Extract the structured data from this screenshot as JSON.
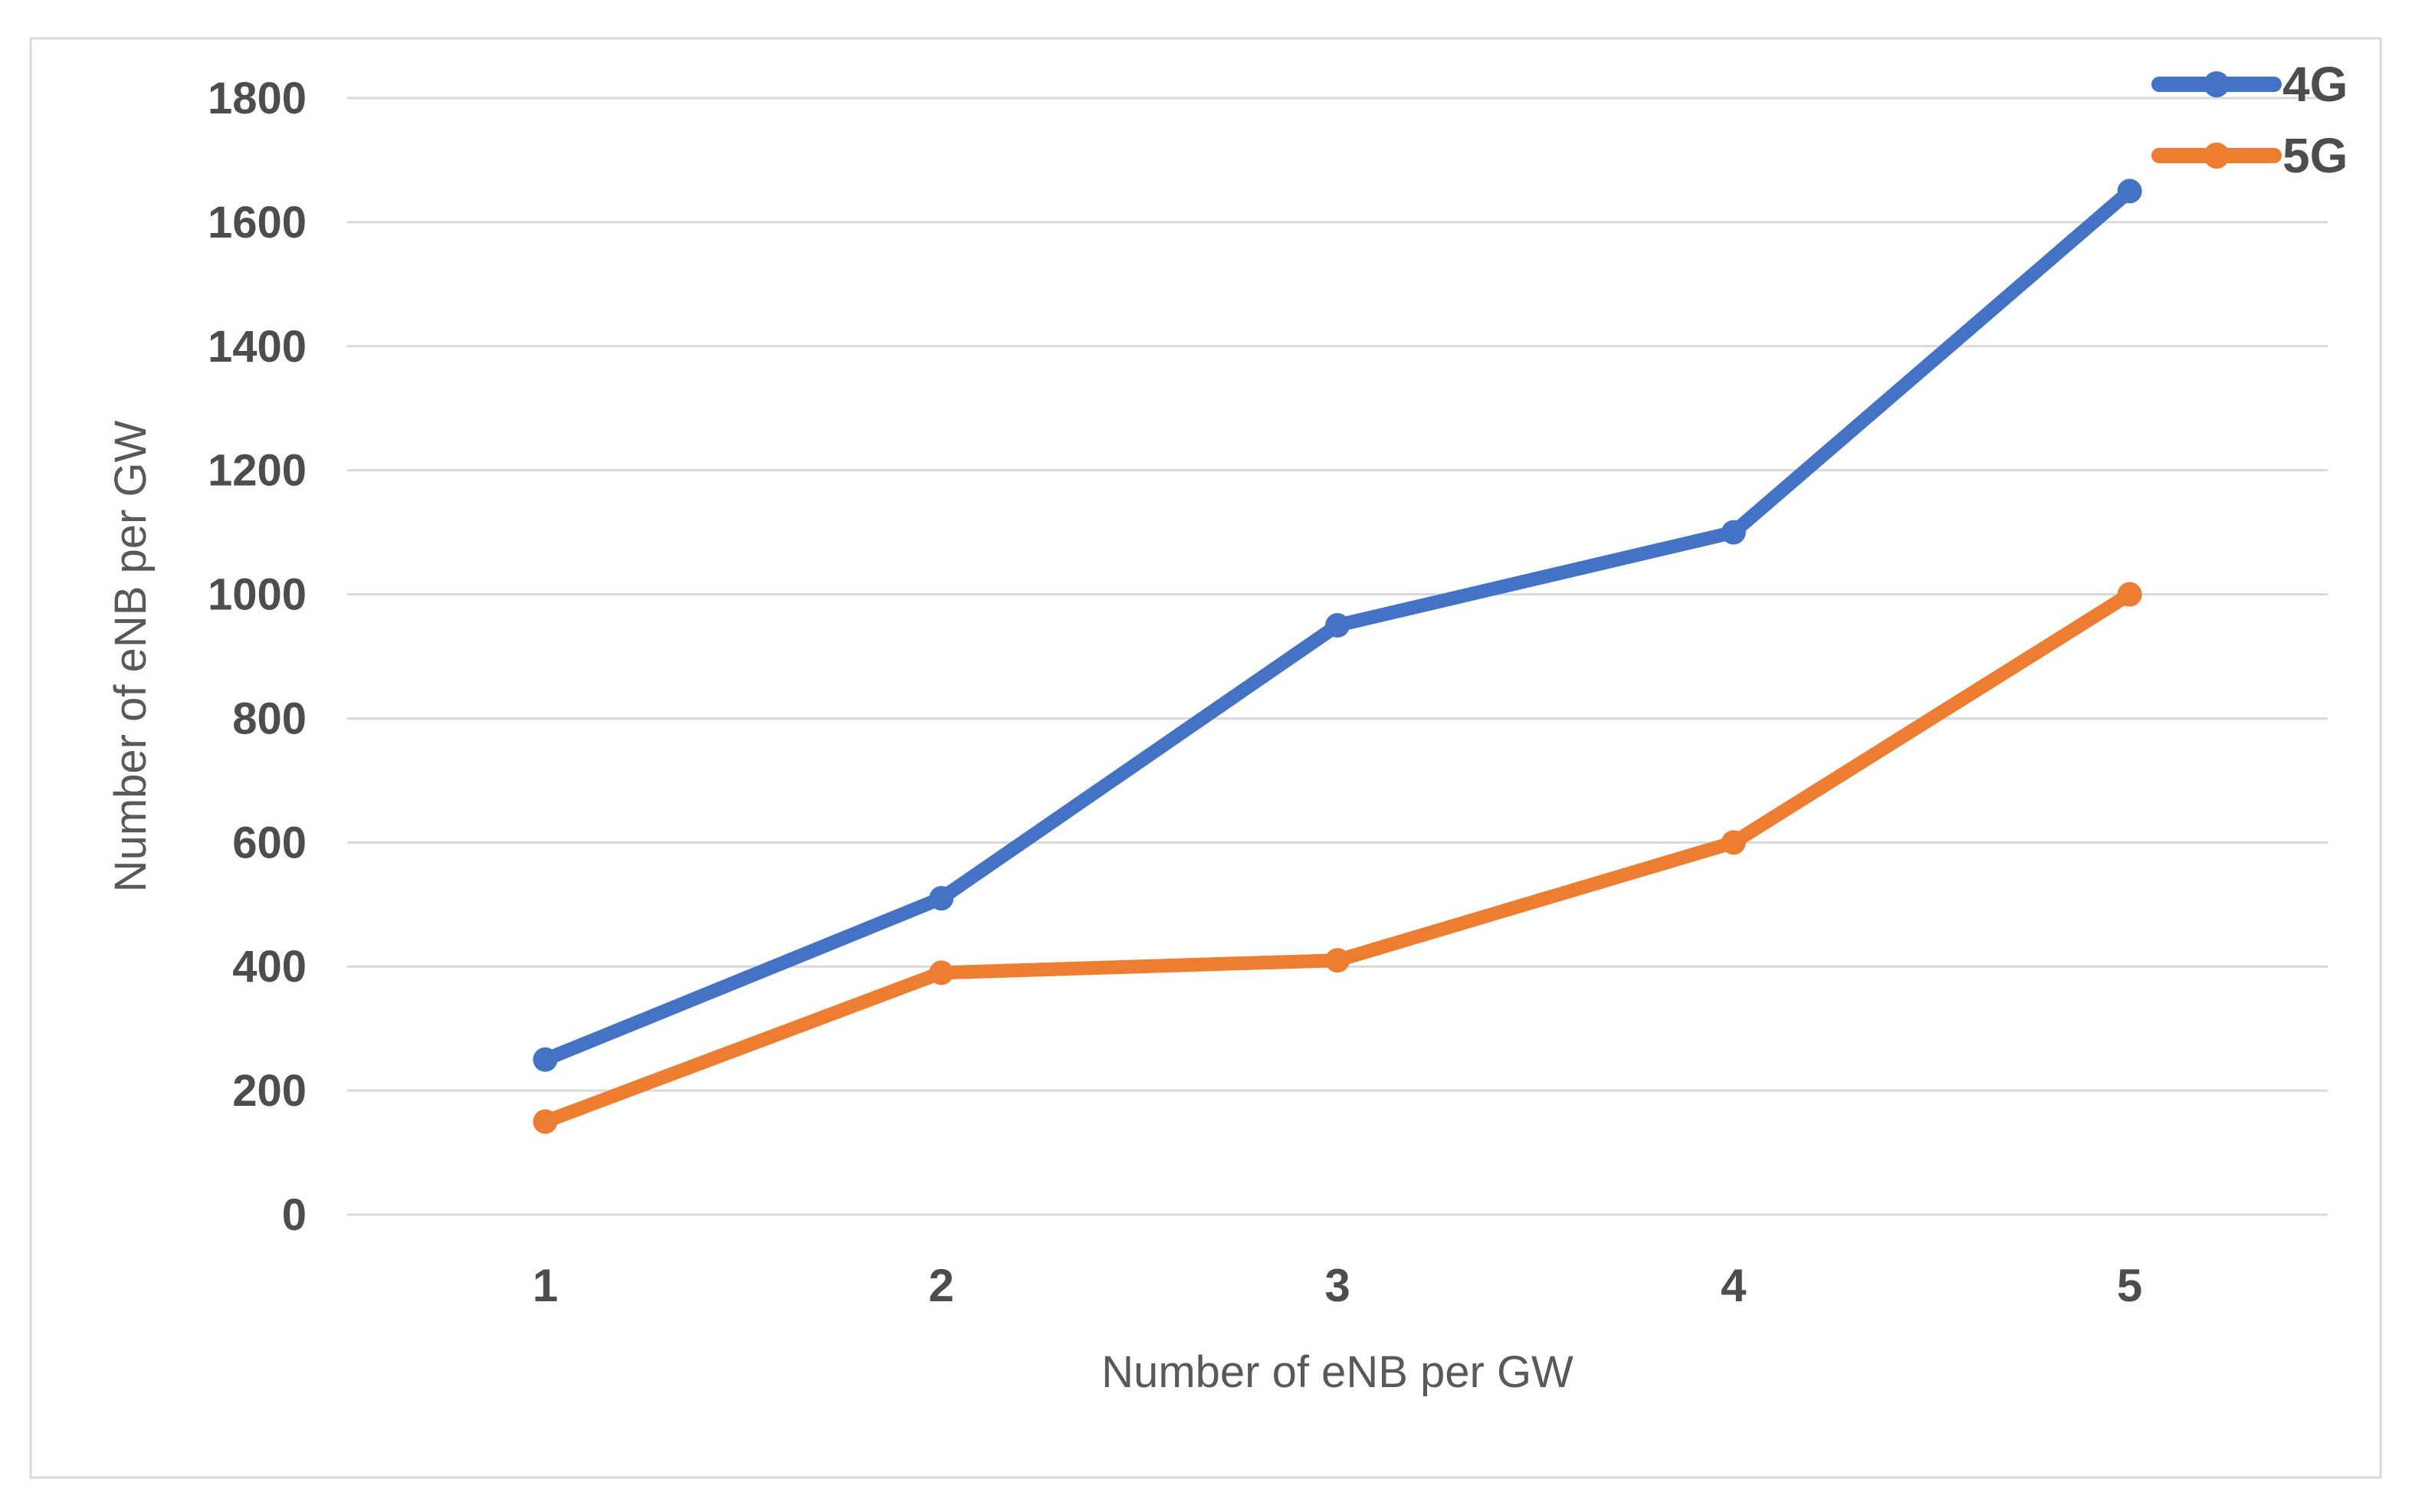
{
  "figure": {
    "background": "#FFFFFF",
    "border_color": "#D9D9D9"
  },
  "colors": {
    "gridline": "#D9D9D9",
    "tick_text": "#4D4D4D",
    "axis_title_text": "#595959",
    "legend_text": "#4D4D4D",
    "series_4g": "#4472C4",
    "series_5g": "#ED7D31"
  },
  "chart_data": {
    "type": "line",
    "title": "",
    "categories": [
      "1",
      "2",
      "3",
      "4",
      "5"
    ],
    "series": [
      {
        "name": "4G",
        "color": "#4472C4",
        "values": [
          250,
          510,
          950,
          1100,
          1650
        ]
      },
      {
        "name": "5G",
        "color": "#ED7D31",
        "values": [
          150,
          390,
          410,
          600,
          1000
        ]
      }
    ],
    "xlabel": "Number of eNB per GW",
    "ylabel": "Number of eNB per GW",
    "ylim": [
      0,
      1800
    ],
    "ytick_step": 200,
    "yticks": [
      "0",
      "200",
      "400",
      "600",
      "800",
      "1000",
      "1200",
      "1400",
      "1600",
      "1800"
    ],
    "grid": true,
    "marker": "circle",
    "legend_position": "top-right",
    "legend_entries": [
      "4G",
      "5G"
    ]
  }
}
